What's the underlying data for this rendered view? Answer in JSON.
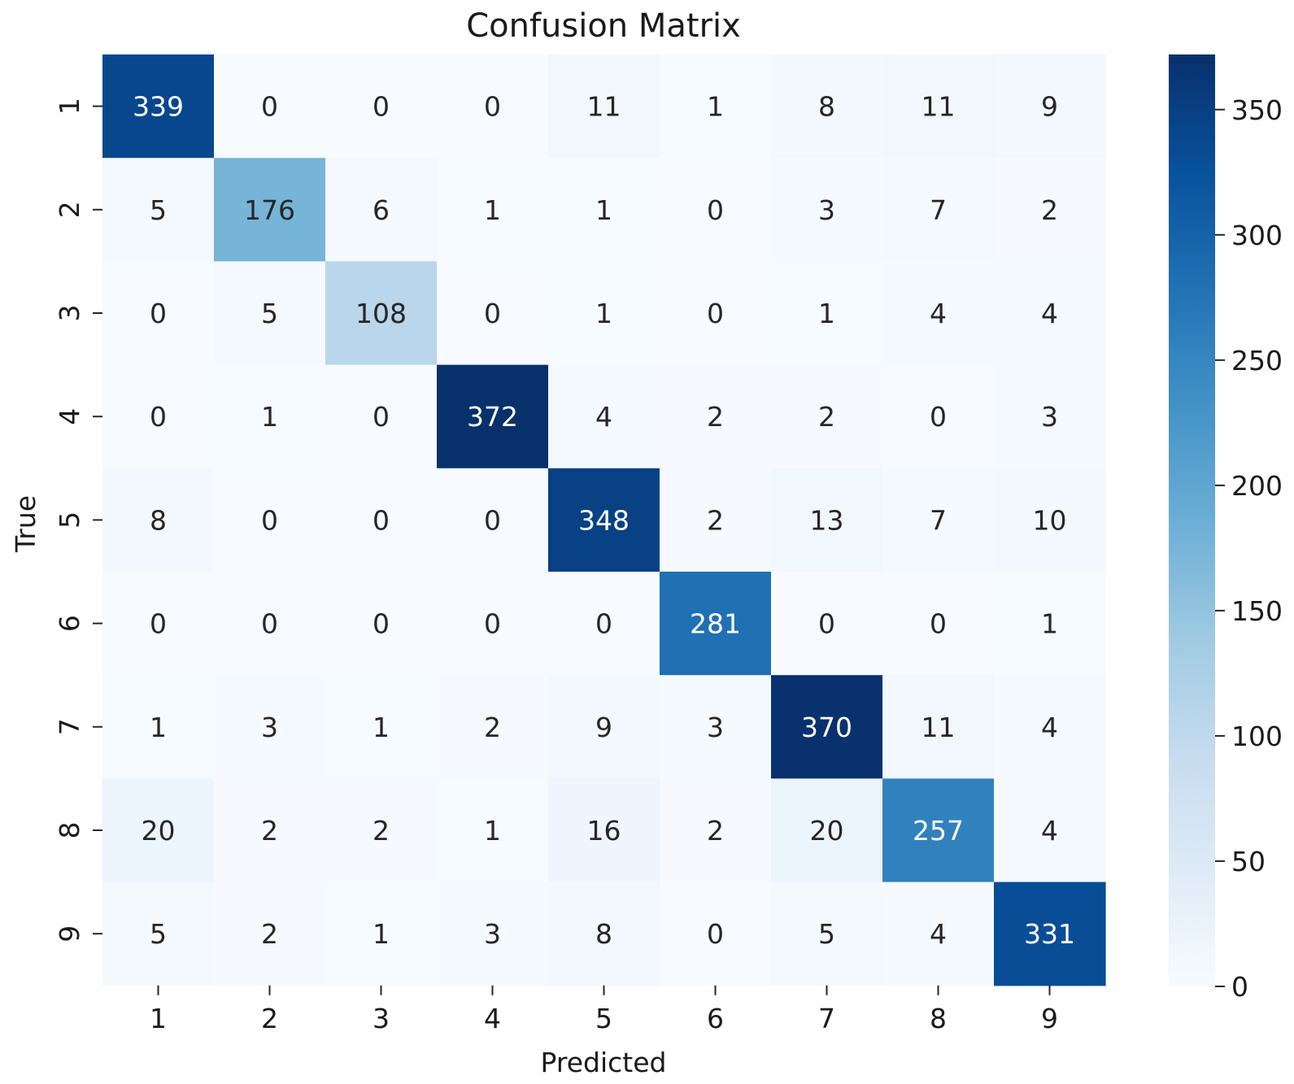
{
  "chart_data": {
    "type": "heatmap",
    "title": "Confusion Matrix",
    "xlabel": "Predicted",
    "ylabel": "True",
    "x_categories": [
      "1",
      "2",
      "3",
      "4",
      "5",
      "6",
      "7",
      "8",
      "9"
    ],
    "y_categories": [
      "1",
      "2",
      "3",
      "4",
      "5",
      "6",
      "7",
      "8",
      "9"
    ],
    "values": [
      [
        339,
        0,
        0,
        0,
        11,
        1,
        8,
        11,
        9
      ],
      [
        5,
        176,
        6,
        1,
        1,
        0,
        3,
        7,
        2
      ],
      [
        0,
        5,
        108,
        0,
        1,
        0,
        1,
        4,
        4
      ],
      [
        0,
        1,
        0,
        372,
        4,
        2,
        2,
        0,
        3
      ],
      [
        8,
        0,
        0,
        0,
        348,
        2,
        13,
        7,
        10
      ],
      [
        0,
        0,
        0,
        0,
        0,
        281,
        0,
        0,
        1
      ],
      [
        1,
        3,
        1,
        2,
        9,
        3,
        370,
        11,
        4
      ],
      [
        20,
        2,
        2,
        1,
        16,
        2,
        20,
        257,
        4
      ],
      [
        5,
        2,
        1,
        3,
        8,
        0,
        5,
        4,
        331
      ]
    ],
    "colormap": "Blues",
    "colorbar": {
      "range": [
        0,
        372
      ],
      "ticks": [
        0,
        50,
        100,
        150,
        200,
        250,
        300,
        350
      ]
    },
    "legend_position": "right"
  }
}
